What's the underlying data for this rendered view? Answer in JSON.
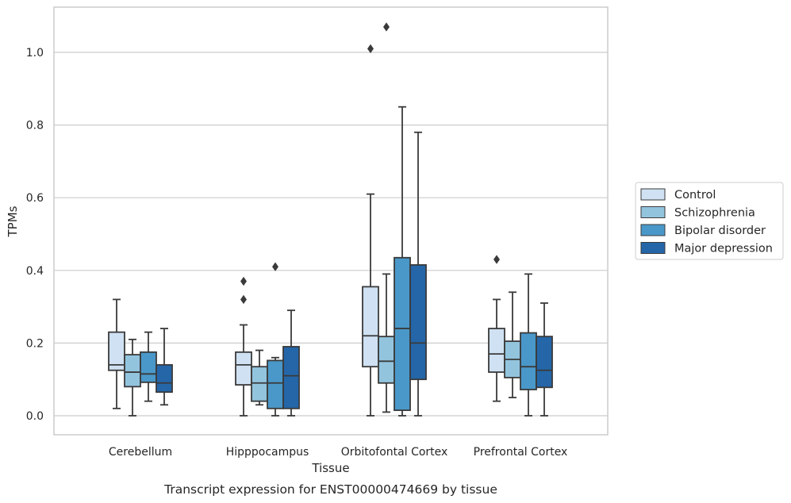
{
  "chart_data": {
    "type": "boxplot",
    "title": "",
    "xlabel": "Tissue",
    "ylabel": "TPMs",
    "caption": "Transcript expression for ENST00000474669 by tissue",
    "categories": [
      "Cerebellum",
      "Hipppocampus",
      "Orbitofontal Cortex",
      "Prefrontal Cortex"
    ],
    "ylim": [
      -0.05,
      1.13
    ],
    "yticks": [
      0.0,
      0.2,
      0.4,
      0.6,
      0.8,
      1.0
    ],
    "ytick_labels": [
      "0.0",
      "0.2",
      "0.4",
      "0.6",
      "0.8",
      "1.0"
    ],
    "grid": "horizontal",
    "legend_position": "outside-right",
    "series": [
      {
        "name": "Control",
        "color": "#cfe1f2",
        "boxes": [
          {
            "whislo": 0.02,
            "q1": 0.125,
            "med": 0.14,
            "q3": 0.23,
            "whishi": 0.32,
            "fliers": []
          },
          {
            "whislo": 0.0,
            "q1": 0.085,
            "med": 0.14,
            "q3": 0.175,
            "whishi": 0.25,
            "fliers": [
              0.32,
              0.37
            ]
          },
          {
            "whislo": 0.0,
            "q1": 0.135,
            "med": 0.22,
            "q3": 0.355,
            "whishi": 0.61,
            "fliers": [
              1.01
            ]
          },
          {
            "whislo": 0.04,
            "q1": 0.12,
            "med": 0.17,
            "q3": 0.24,
            "whishi": 0.32,
            "fliers": [
              0.43
            ]
          }
        ]
      },
      {
        "name": "Schizophrenia",
        "color": "#93c4de",
        "boxes": [
          {
            "whislo": 0.0,
            "q1": 0.08,
            "med": 0.12,
            "q3": 0.168,
            "whishi": 0.21,
            "fliers": []
          },
          {
            "whislo": 0.03,
            "q1": 0.04,
            "med": 0.09,
            "q3": 0.135,
            "whishi": 0.18,
            "fliers": []
          },
          {
            "whislo": 0.01,
            "q1": 0.09,
            "med": 0.15,
            "q3": 0.218,
            "whishi": 0.39,
            "fliers": [
              1.07
            ]
          },
          {
            "whislo": 0.05,
            "q1": 0.105,
            "med": 0.155,
            "q3": 0.205,
            "whishi": 0.34,
            "fliers": []
          }
        ]
      },
      {
        "name": "Bipolar disorder",
        "color": "#4a98c9",
        "boxes": [
          {
            "whislo": 0.04,
            "q1": 0.092,
            "med": 0.115,
            "q3": 0.175,
            "whishi": 0.23,
            "fliers": []
          },
          {
            "whislo": 0.0,
            "q1": 0.02,
            "med": 0.09,
            "q3": 0.152,
            "whishi": 0.16,
            "fliers": [
              0.41
            ]
          },
          {
            "whislo": 0.0,
            "q1": 0.015,
            "med": 0.24,
            "q3": 0.435,
            "whishi": 0.85,
            "fliers": []
          },
          {
            "whislo": 0.0,
            "q1": 0.072,
            "med": 0.135,
            "q3": 0.228,
            "whishi": 0.39,
            "fliers": []
          }
        ]
      },
      {
        "name": "Major depression",
        "color": "#2466a8",
        "boxes": [
          {
            "whislo": 0.03,
            "q1": 0.065,
            "med": 0.09,
            "q3": 0.14,
            "whishi": 0.24,
            "fliers": []
          },
          {
            "whislo": 0.0,
            "q1": 0.02,
            "med": 0.11,
            "q3": 0.19,
            "whishi": 0.29,
            "fliers": []
          },
          {
            "whislo": 0.0,
            "q1": 0.1,
            "med": 0.2,
            "q3": 0.415,
            "whishi": 0.78,
            "fliers": []
          },
          {
            "whislo": 0.0,
            "q1": 0.078,
            "med": 0.125,
            "q3": 0.218,
            "whishi": 0.31,
            "fliers": []
          }
        ]
      }
    ]
  },
  "style": {
    "box_edge_color": "#3a3a3a",
    "grid_color": "#cccccc",
    "frame_color": "#cccccc"
  }
}
